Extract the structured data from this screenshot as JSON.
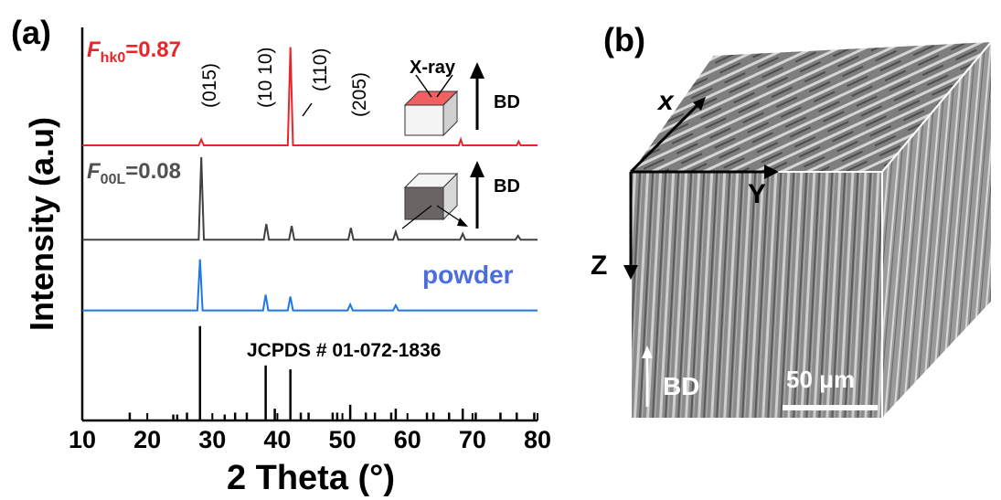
{
  "chart_data": {
    "type": "line",
    "panel_a": "(a)",
    "panel_b": "(b)",
    "xlabel": "2 Theta (°)",
    "ylabel": "Intensity (a.u)",
    "xlim": [
      10,
      80
    ],
    "xticks": [
      10,
      20,
      30,
      40,
      50,
      60,
      70,
      80
    ],
    "ylim": [
      0,
      100
    ],
    "series": [
      {
        "type": "line",
        "color": "#e8262a",
        "label": {
          "symbol": "F",
          "subscript": "hk0",
          "text": "=0.87"
        },
        "x": [
          10,
          27.9,
          28.3,
          28.7,
          41.6,
          42.0,
          42.4,
          67.9,
          68.2,
          68.5,
          76.8,
          77.1,
          77.4,
          80
        ],
        "values": [
          70,
          70,
          71.5,
          70,
          70,
          95,
          70,
          70,
          71.5,
          70,
          70,
          71,
          70,
          70
        ]
      },
      {
        "type": "line",
        "color": "#404040",
        "label": {
          "symbol": "F",
          "subscript": "00L",
          "text": "=0.08"
        },
        "x": [
          10,
          27.9,
          28.3,
          28.7,
          37.9,
          38.3,
          38.7,
          41.8,
          42.2,
          42.6,
          50.9,
          51.3,
          51.7,
          57.8,
          58.2,
          58.6,
          68.1,
          68.5,
          68.9,
          76.6,
          77.0,
          77.4,
          80
        ],
        "values": [
          46,
          46,
          67,
          46,
          46,
          50,
          46,
          46,
          49.5,
          46,
          46,
          49,
          46,
          46,
          48,
          46,
          46,
          47.5,
          46,
          46,
          47,
          46,
          46
        ]
      },
      {
        "type": "line",
        "color": "#1f78e0",
        "label": {
          "text": "powder"
        },
        "x": [
          10,
          27.7,
          28.1,
          28.5,
          37.8,
          38.2,
          38.6,
          41.6,
          42.0,
          42.4,
          50.8,
          51.2,
          51.6,
          57.8,
          58.2,
          58.6,
          80
        ],
        "values": [
          28,
          28,
          41,
          28,
          28,
          32,
          28,
          28,
          31.5,
          28,
          28,
          29.5,
          28,
          28,
          29.3,
          28,
          28
        ]
      },
      {
        "type": "stem",
        "color": "#000000",
        "label": {
          "text": "JCPDS # 01-072-1836"
        },
        "x": [
          17.3,
          24,
          24.6,
          26.1,
          28.1,
          31.9,
          33.5,
          35.3,
          38.2,
          39.6,
          42,
          43.6,
          44.8,
          48.5,
          49.2,
          51.2,
          53.6,
          55,
          57.5,
          58.2,
          63,
          64,
          66.4,
          68.5,
          70.5,
          74.3,
          76.8,
          79.5
        ],
        "values": [
          2,
          1.5,
          1.5,
          2,
          24,
          1.5,
          2,
          2,
          14,
          3,
          13,
          2,
          2,
          2,
          2,
          4,
          2,
          2,
          2,
          3,
          2,
          2,
          2,
          3,
          2,
          2,
          2,
          2
        ]
      }
    ],
    "peak_labels": [
      "(015)",
      "(10 10)",
      "(110)",
      "(205)"
    ],
    "insets": {
      "xray": "X-ray",
      "bd_top": "BD",
      "bd_mid": "BD"
    },
    "sem": {
      "x": "x",
      "y": "Y",
      "z": "Z",
      "bd": "BD",
      "scale": "50 μm"
    }
  }
}
